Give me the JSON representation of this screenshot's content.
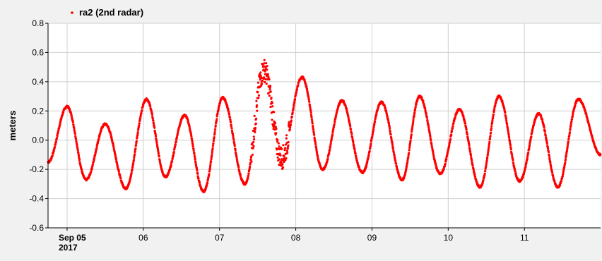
{
  "chart_data": {
    "type": "scatter",
    "ylabel": "meters",
    "ylim": [
      -0.6,
      0.8
    ],
    "yticks": [
      "0.8",
      "0.6",
      "0.4",
      "0.2",
      "0.0",
      "-0.2",
      "-0.4",
      "-0.6"
    ],
    "xlim": [
      "2017-09-04T18:00",
      "2017-09-11T23:59"
    ],
    "xticks": [
      {
        "date": "2017-09-05",
        "label": "Sep 05",
        "sublabel": "2017"
      },
      {
        "date": "2017-09-06",
        "label": "06"
      },
      {
        "date": "2017-09-07",
        "label": "07"
      },
      {
        "date": "2017-09-08",
        "label": "08"
      },
      {
        "date": "2017-09-09",
        "label": "09"
      },
      {
        "date": "2017-09-10",
        "label": "10"
      },
      {
        "date": "2017-09-11",
        "label": "11"
      }
    ],
    "grid": true,
    "legend_position": "top-left",
    "series": [
      {
        "name": "ra2 (2nd radar)",
        "color": "#ff0000",
        "marker": "dot",
        "points": [
          {
            "t": "2017-09-04 18:00",
            "y": -0.15
          },
          {
            "t": "2017-09-05 00:00",
            "y": 0.23
          },
          {
            "t": "2017-09-05 06:00",
            "y": -0.27
          },
          {
            "t": "2017-09-05 12:00",
            "y": 0.11
          },
          {
            "t": "2017-09-05 18:30",
            "y": -0.33
          },
          {
            "t": "2017-09-06 01:00",
            "y": 0.28
          },
          {
            "t": "2017-09-06 07:00",
            "y": -0.25
          },
          {
            "t": "2017-09-06 13:00",
            "y": 0.17
          },
          {
            "t": "2017-09-06 19:00",
            "y": -0.35
          },
          {
            "t": "2017-09-07 01:00",
            "y": 0.29
          },
          {
            "t": "2017-09-07 08:00",
            "y": -0.3
          },
          {
            "t": "2017-09-07 14:00",
            "y": 0.48
          },
          {
            "t": "2017-09-07 19:30",
            "y": -0.12
          },
          {
            "t": "2017-09-08 02:00",
            "y": 0.43
          },
          {
            "t": "2017-09-08 08:30",
            "y": -0.2
          },
          {
            "t": "2017-09-08 14:30",
            "y": 0.27
          },
          {
            "t": "2017-09-08 21:00",
            "y": -0.22
          },
          {
            "t": "2017-09-09 03:00",
            "y": 0.26
          },
          {
            "t": "2017-09-09 09:30",
            "y": -0.27
          },
          {
            "t": "2017-09-09 15:00",
            "y": 0.3
          },
          {
            "t": "2017-09-09 21:30",
            "y": -0.23
          },
          {
            "t": "2017-09-10 03:30",
            "y": 0.21
          },
          {
            "t": "2017-09-10 10:00",
            "y": -0.32
          },
          {
            "t": "2017-09-10 16:00",
            "y": 0.3
          },
          {
            "t": "2017-09-10 22:30",
            "y": -0.28
          },
          {
            "t": "2017-09-11 04:30",
            "y": 0.18
          },
          {
            "t": "2017-09-11 10:30",
            "y": -0.32
          },
          {
            "t": "2017-09-11 17:00",
            "y": 0.28
          },
          {
            "t": "2017-09-11 23:59",
            "y": -0.1
          }
        ]
      }
    ]
  }
}
